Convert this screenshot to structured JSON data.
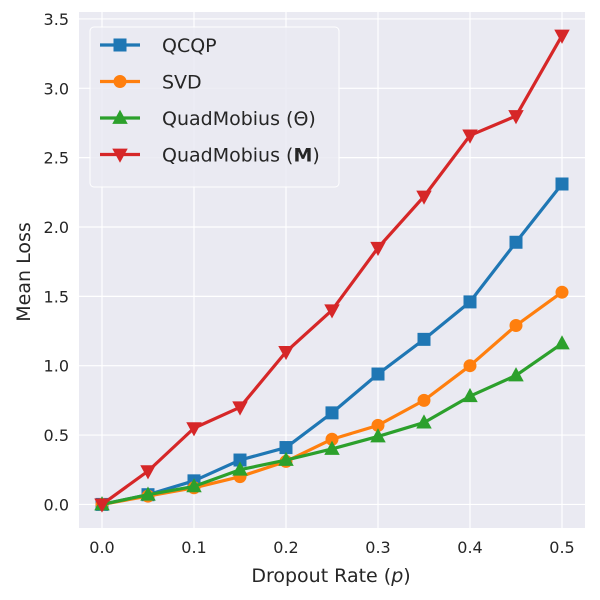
{
  "chart_data": {
    "type": "line",
    "title": "",
    "xlabel": "Dropout Rate (",
    "xlabel_var": "p",
    "xlabel_close": ")",
    "ylabel": "Mean Loss",
    "xlim": [
      -0.025,
      0.525
    ],
    "ylim": [
      -0.17,
      3.55
    ],
    "xticks": [
      0.0,
      0.1,
      0.2,
      0.3,
      0.4,
      0.5
    ],
    "xtick_labels": [
      "0.0",
      "0.1",
      "0.2",
      "0.3",
      "0.4",
      "0.5"
    ],
    "yticks": [
      0.0,
      0.5,
      1.0,
      1.5,
      2.0,
      2.5,
      3.0,
      3.5
    ],
    "ytick_labels": [
      "0.0",
      "0.5",
      "1.0",
      "1.5",
      "2.0",
      "2.5",
      "3.0",
      "3.5"
    ],
    "grid": true,
    "legend_position": "top-left",
    "x": [
      0.0,
      0.05,
      0.1,
      0.15,
      0.2,
      0.25,
      0.3,
      0.35,
      0.4,
      0.45,
      0.5
    ],
    "series": [
      {
        "name": "QCQP",
        "name_suffix": "",
        "color": "#1f77b4",
        "marker": "square",
        "values": [
          0.0,
          0.07,
          0.17,
          0.32,
          0.41,
          0.66,
          0.94,
          1.19,
          1.46,
          1.89,
          2.31
        ]
      },
      {
        "name": "SVD",
        "name_suffix": "",
        "color": "#ff7f0e",
        "marker": "circle",
        "values": [
          0.0,
          0.06,
          0.12,
          0.2,
          0.31,
          0.47,
          0.57,
          0.75,
          1.0,
          1.29,
          1.53
        ]
      },
      {
        "name": "QuadMobius (Θ)",
        "name_suffix": "",
        "color": "#2ca02c",
        "marker": "triangle-up",
        "values": [
          0.0,
          0.07,
          0.13,
          0.25,
          0.32,
          0.4,
          0.49,
          0.59,
          0.78,
          0.93,
          1.16
        ]
      },
      {
        "name": "QuadMobius (",
        "name_bold": "M",
        "name_suffix": ")",
        "color": "#d62728",
        "marker": "triangle-down",
        "values": [
          0.0,
          0.24,
          0.55,
          0.7,
          1.1,
          1.4,
          1.85,
          2.22,
          2.66,
          2.8,
          3.38
        ]
      }
    ]
  }
}
